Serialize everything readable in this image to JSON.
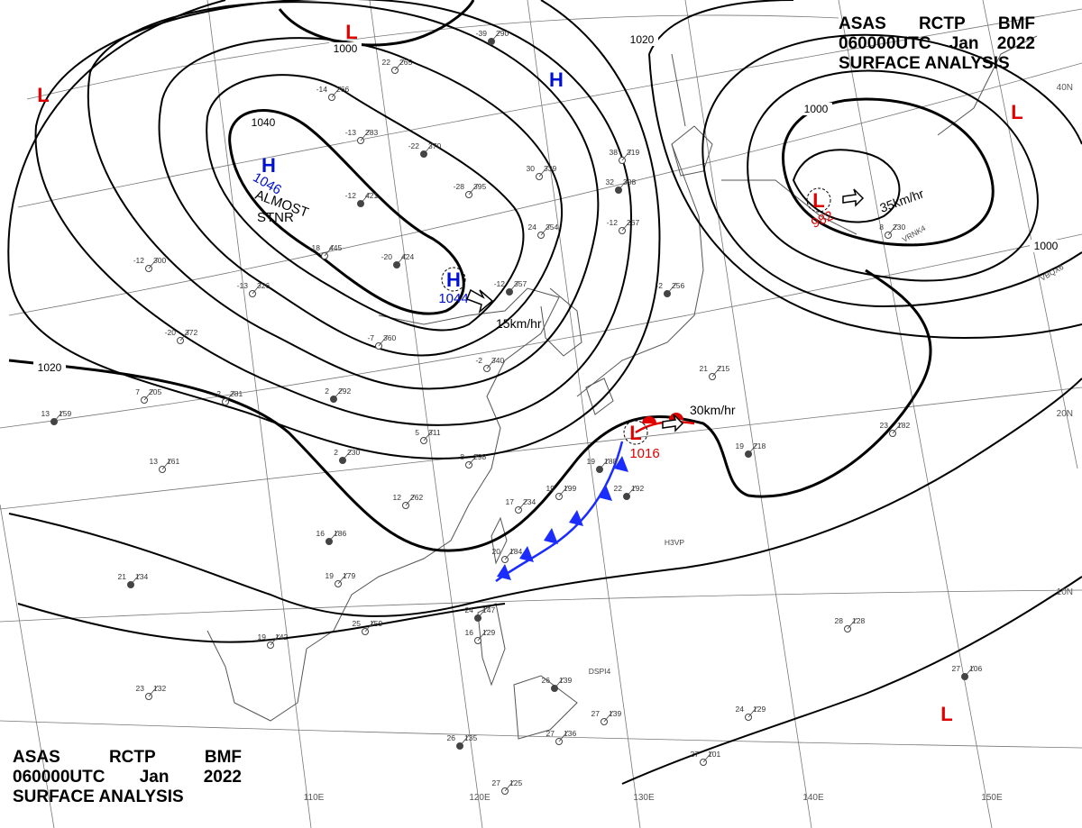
{
  "header": {
    "line1": [
      "ASAS",
      "RCTP",
      "BMF"
    ],
    "line2": [
      "060000UTC",
      "Jan",
      "2022"
    ],
    "line3": "SURFACE ANALYSIS"
  },
  "colors": {
    "isobar": "#000000",
    "low": "#e00000",
    "high": "#0010d0",
    "cold_front": "#1a2cff",
    "warm_front": "#e00000",
    "coast": "#555555",
    "grid": "#777777",
    "station": "#444444"
  },
  "isobar_labels": [
    "1000",
    "1040",
    "1020",
    "1020",
    "1000"
  ],
  "lows": [
    {
      "symbol": "L",
      "value": ""
    },
    {
      "symbol": "L",
      "value": ""
    },
    {
      "symbol": "L",
      "value": ""
    },
    {
      "symbol": "L",
      "value": "982",
      "motion": "35km/hr"
    },
    {
      "symbol": "L",
      "value": "1016",
      "motion": "30km/hr"
    },
    {
      "symbol": "L",
      "value": ""
    }
  ],
  "highs": [
    {
      "symbol": "H",
      "value": ""
    },
    {
      "symbol": "H",
      "value": "1046",
      "note": [
        "ALMOST",
        "STNR"
      ]
    },
    {
      "symbol": "H",
      "value": "1044",
      "motion": "15km/hr"
    }
  ],
  "lon_labels": [
    "110E",
    "120E",
    "130E",
    "140E",
    "150E"
  ],
  "lat_labels": [
    "40N",
    "20N",
    "10N"
  ],
  "ship_ids": [
    "VRNK4",
    "VBQX6",
    "H3VP",
    "DSPI4"
  ],
  "stations": [
    {
      "t": "-39",
      "p": "290"
    },
    {
      "t": "22",
      "p": "265"
    },
    {
      "t": "-14",
      "p": "266"
    },
    {
      "t": "-22",
      "p": "370"
    },
    {
      "t": "-13",
      "p": "283"
    },
    {
      "t": "-28",
      "p": "395"
    },
    {
      "t": "-12",
      "p": "421"
    },
    {
      "t": "30",
      "p": "339"
    },
    {
      "t": "38",
      "p": "319"
    },
    {
      "t": "32",
      "p": "308"
    },
    {
      "t": "24",
      "p": "354"
    },
    {
      "t": "-18",
      "p": "445"
    },
    {
      "t": "-20",
      "p": "424"
    },
    {
      "t": "-12",
      "p": "300"
    },
    {
      "t": "-13",
      "p": "326"
    },
    {
      "t": "-12",
      "p": "357"
    },
    {
      "t": "-20",
      "p": "372"
    },
    {
      "t": "-7",
      "p": "360"
    },
    {
      "t": "-2",
      "p": "256"
    },
    {
      "t": "-12",
      "p": "267"
    },
    {
      "t": "7",
      "p": "205"
    },
    {
      "t": "13",
      "p": "159"
    },
    {
      "t": "13",
      "p": "161"
    },
    {
      "t": "2",
      "p": "281"
    },
    {
      "t": "2",
      "p": "292"
    },
    {
      "t": "-2",
      "p": "340"
    },
    {
      "t": "5",
      "p": "311"
    },
    {
      "t": "2",
      "p": "230"
    },
    {
      "t": "8",
      "p": "298"
    },
    {
      "t": "12",
      "p": "262"
    },
    {
      "t": "19",
      "p": "188"
    },
    {
      "t": "19",
      "p": "199"
    },
    {
      "t": "17",
      "p": "234"
    },
    {
      "t": "16",
      "p": "186"
    },
    {
      "t": "20",
      "p": "184"
    },
    {
      "t": "19",
      "p": "179"
    },
    {
      "t": "21",
      "p": "134"
    },
    {
      "t": "19",
      "p": "142"
    },
    {
      "t": "25",
      "p": "159"
    },
    {
      "t": "24",
      "p": "147"
    },
    {
      "t": "16",
      "p": "129"
    },
    {
      "t": "23",
      "p": "132"
    },
    {
      "t": "26",
      "p": "135"
    },
    {
      "t": "27",
      "p": "125"
    },
    {
      "t": "27",
      "p": "136"
    },
    {
      "t": "19",
      "p": "218"
    },
    {
      "t": "23",
      "p": "182"
    },
    {
      "t": "28",
      "p": "128"
    },
    {
      "t": "27",
      "p": "106"
    },
    {
      "t": "24",
      "p": "129"
    },
    {
      "t": "27",
      "p": "101"
    },
    {
      "t": "22",
      "p": "192"
    },
    {
      "t": "21",
      "p": "215"
    },
    {
      "t": "8",
      "p": "230"
    },
    {
      "t": "26",
      "p": "139"
    },
    {
      "t": "27",
      "p": "139"
    }
  ]
}
